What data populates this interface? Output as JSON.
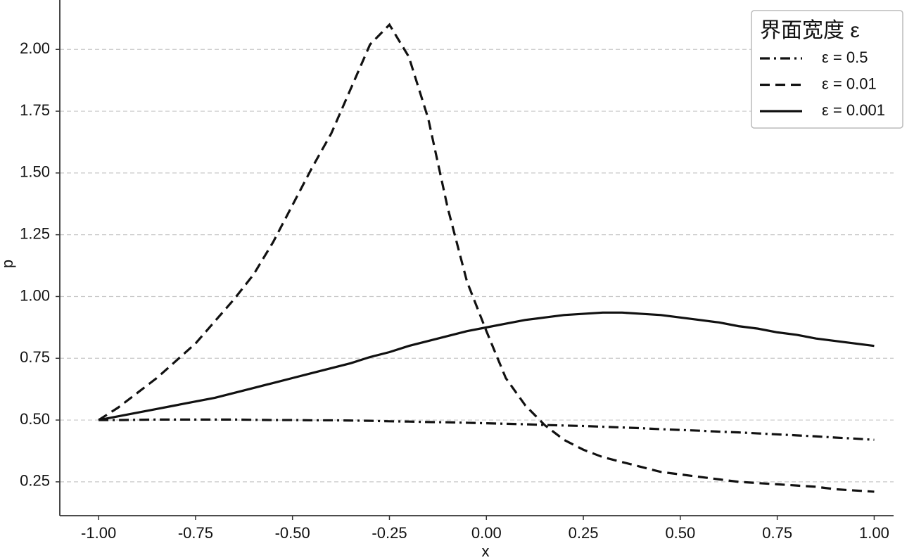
{
  "chart_data": {
    "type": "line",
    "xlabel": "x",
    "ylabel": "p",
    "legend_title": "界面宽度  ε",
    "legend": "upper right",
    "grid": "y",
    "xlim": [
      -1.1,
      1.05
    ],
    "ylim": [
      0.113,
      2.2
    ],
    "xticks": [
      {
        "value": -1,
        "label": "-1.00"
      },
      {
        "value": -0.75,
        "label": "-0.75"
      },
      {
        "value": -0.5,
        "label": "-0.50"
      },
      {
        "value": -0.25,
        "label": "-0.25"
      },
      {
        "value": 0,
        "label": "0.00"
      },
      {
        "value": 0.25,
        "label": "0.25"
      },
      {
        "value": 0.5,
        "label": "0.50"
      },
      {
        "value": 0.75,
        "label": "0.75"
      },
      {
        "value": 1,
        "label": "1.00"
      }
    ],
    "yticks": [
      {
        "value": 0.25,
        "label": "0.25"
      },
      {
        "value": 0.5,
        "label": "0.50"
      },
      {
        "value": 0.75,
        "label": "0.75"
      },
      {
        "value": 1,
        "label": "1.00"
      },
      {
        "value": 1.25,
        "label": "1.25"
      },
      {
        "value": 1.5,
        "label": "1.50"
      },
      {
        "value": 1.75,
        "label": "1.75"
      },
      {
        "value": 2,
        "label": "2.00"
      }
    ],
    "x": [
      -1,
      -0.95,
      -0.9,
      -0.85,
      -0.8,
      -0.75,
      -0.7,
      -0.65,
      -0.6,
      -0.55,
      -0.5,
      -0.45,
      -0.4,
      -0.35,
      -0.3,
      -0.25,
      -0.2,
      -0.15,
      -0.1,
      -0.05,
      0,
      0.05,
      0.1,
      0.15,
      0.2,
      0.25,
      0.3,
      0.35,
      0.4,
      0.45,
      0.5,
      0.55,
      0.6,
      0.65,
      0.7,
      0.75,
      0.8,
      0.85,
      0.9,
      0.95,
      1
    ],
    "series": [
      {
        "name": "ε = 0.5",
        "color": "#111111",
        "linestyle": "dashdot",
        "values": [
          0.5,
          0.5,
          0.501,
          0.502,
          0.502,
          0.502,
          0.502,
          0.502,
          0.501,
          0.5,
          0.5,
          0.499,
          0.499,
          0.498,
          0.497,
          0.495,
          0.494,
          0.492,
          0.491,
          0.489,
          0.487,
          0.485,
          0.483,
          0.48,
          0.478,
          0.476,
          0.473,
          0.47,
          0.467,
          0.463,
          0.46,
          0.457,
          0.453,
          0.45,
          0.446,
          0.442,
          0.438,
          0.434,
          0.429,
          0.425,
          0.42
        ]
      },
      {
        "name": "ε = 0.01",
        "color": "#111111",
        "linestyle": "dashed",
        "values": [
          0.5,
          0.55,
          0.61,
          0.67,
          0.74,
          0.81,
          0.9,
          0.99,
          1.09,
          1.22,
          1.37,
          1.52,
          1.66,
          1.84,
          2.02,
          2.1,
          1.97,
          1.72,
          1.36,
          1.06,
          0.86,
          0.67,
          0.56,
          0.48,
          0.42,
          0.38,
          0.35,
          0.33,
          0.31,
          0.29,
          0.28,
          0.27,
          0.26,
          0.25,
          0.245,
          0.24,
          0.235,
          0.23,
          0.22,
          0.215,
          0.21
        ]
      },
      {
        "name": "ε = 0.001",
        "color": "#111111",
        "linestyle": "solid",
        "values": [
          0.5,
          0.515,
          0.53,
          0.545,
          0.56,
          0.575,
          0.59,
          0.61,
          0.63,
          0.65,
          0.67,
          0.69,
          0.71,
          0.73,
          0.755,
          0.775,
          0.8,
          0.82,
          0.84,
          0.86,
          0.875,
          0.89,
          0.905,
          0.915,
          0.925,
          0.93,
          0.935,
          0.935,
          0.93,
          0.925,
          0.915,
          0.905,
          0.895,
          0.88,
          0.87,
          0.855,
          0.845,
          0.83,
          0.82,
          0.81,
          0.8
        ]
      }
    ]
  }
}
